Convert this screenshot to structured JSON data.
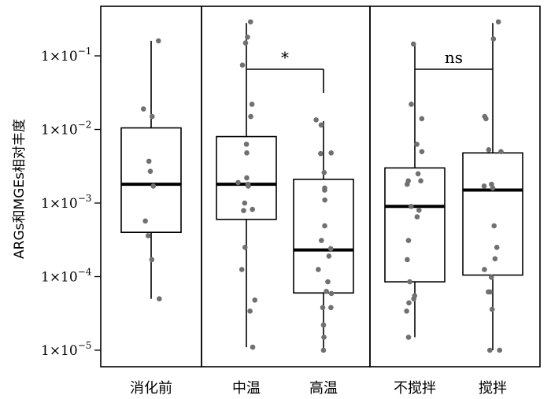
{
  "chart_data": {
    "type": "box",
    "ylabel": "ARGs和MGEs相对丰度",
    "yscale": "log",
    "ylim": [
      7e-06,
      0.00045
    ],
    "y_ticks": [
      {
        "value": 0.1,
        "base": "1×10",
        "exp": "−1"
      },
      {
        "value": 0.01,
        "base": "1×10",
        "exp": "−2"
      },
      {
        "value": 0.001,
        "base": "1×10",
        "exp": "−3"
      },
      {
        "value": 0.0001,
        "base": "1×10",
        "exp": "−4"
      },
      {
        "value": 1e-05,
        "base": "1×10",
        "exp": "−5"
      }
    ],
    "groups": [
      {
        "name": "消化前",
        "box": {
          "whisker_low": 5e-05,
          "q1": 0.0004,
          "median": 0.0018,
          "q3": 0.0105,
          "whisker_high": 0.16
        },
        "points": [
          0.16,
          0.019,
          0.015,
          0.0037,
          0.0027,
          0.0017,
          0.00057,
          0.00036,
          0.00017,
          5e-05
        ]
      },
      {
        "name": "中温",
        "box": {
          "whisker_low": 1.1e-05,
          "q1": 0.0006,
          "median": 0.0018,
          "q3": 0.008,
          "whisker_high": 0.28
        },
        "points": [
          0.29,
          0.18,
          0.15,
          0.075,
          0.022,
          0.015,
          0.0063,
          0.0048,
          0.0022,
          0.0019,
          0.0018,
          0.0017,
          0.001,
          0.00082,
          0.00079,
          0.00025,
          0.000125,
          4.8e-05,
          3.4e-05,
          1.1e-05
        ]
      },
      {
        "name": "高温",
        "box": {
          "whisker_low": 1e-05,
          "q1": 6e-05,
          "median": 0.00023,
          "q3": 0.0021,
          "whisker_high": 0.013
        },
        "points": [
          0.0135,
          0.0115,
          0.0047,
          0.0048,
          0.0026,
          0.0016,
          0.0015,
          0.0011,
          0.00049,
          0.00031,
          0.00024,
          0.00019,
          0.000125,
          8.5e-05,
          6.3e-05,
          5.9e-05,
          3.8e-05,
          3.8e-05,
          2.2e-05,
          1.5e-05,
          1e-05
        ]
      },
      {
        "name": "不搅拌",
        "box": {
          "whisker_low": 1.5e-05,
          "q1": 8.5e-05,
          "median": 0.0009,
          "q3": 0.003,
          "whisker_high": 0.15
        },
        "points": [
          0.145,
          0.022,
          0.014,
          0.0063,
          0.005,
          0.0025,
          0.002,
          0.002,
          0.0018,
          0.0009,
          0.0008,
          0.00065,
          0.00031,
          0.00017,
          8.5e-05,
          5.5e-05,
          5e-05,
          4.4e-05,
          3.4e-05,
          1.5e-05
        ]
      },
      {
        "name": "搅拌",
        "box": {
          "whisker_low": 1e-05,
          "q1": 0.000105,
          "median": 0.0015,
          "q3": 0.0048,
          "whisker_high": 0.28
        },
        "points": [
          0.29,
          0.17,
          0.015,
          0.014,
          0.0053,
          0.005,
          0.0018,
          0.0017,
          0.0016,
          0.00049,
          0.00025,
          0.000175,
          0.000125,
          9.8e-05,
          6.2e-05,
          6.2e-05,
          3.6e-05,
          1e-05,
          1e-05
        ]
      }
    ],
    "panels": [
      [
        "消化前"
      ],
      [
        "中温",
        "高温"
      ],
      [
        "不搅拌",
        "搅拌"
      ]
    ],
    "comparisons": [
      {
        "groups": [
          "中温",
          "高温"
        ],
        "label": "*"
      },
      {
        "groups": [
          "不搅拌",
          "搅拌"
        ],
        "label": "ns"
      }
    ],
    "colors": {
      "points": "#707070",
      "lines": "#000000"
    }
  }
}
